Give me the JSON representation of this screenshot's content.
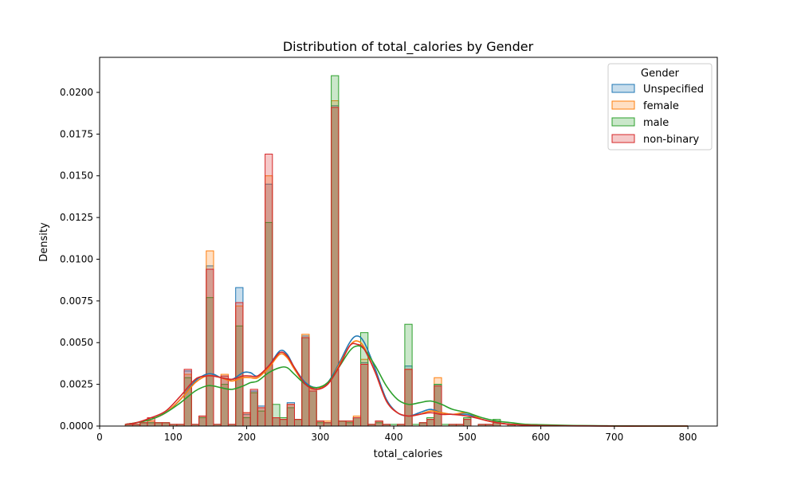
{
  "chart_data": {
    "type": "histogram",
    "title": "Distribution of total_calories by Gender",
    "xlabel": "total_calories",
    "ylabel": "Density",
    "xlim": [
      0,
      840
    ],
    "ylim": [
      0,
      0.0221
    ],
    "xticks": [
      0,
      100,
      200,
      300,
      400,
      500,
      600,
      700,
      800
    ],
    "xtick_labels": [
      "0",
      "100",
      "200",
      "300",
      "400",
      "500",
      "600",
      "700",
      "800"
    ],
    "yticks": [
      0,
      0.0025,
      0.005,
      0.0075,
      0.01,
      0.0125,
      0.015,
      0.0175,
      0.02
    ],
    "ytick_labels": [
      "0.0000",
      "0.0025",
      "0.0050",
      "0.0075",
      "0.0100",
      "0.0125",
      "0.0150",
      "0.0175",
      "0.0200"
    ],
    "grid": false,
    "legend": {
      "title": "Gender",
      "placement": "top-right"
    },
    "bin_start": 35,
    "bin_width": 10,
    "series": [
      {
        "name": "Unspecified",
        "color": "#1f77b4",
        "bars": [
          0.0001,
          0.0001,
          0.0002,
          0.0002,
          0.0002,
          0.0002,
          0.0001,
          0.0001,
          0.0033,
          0.0001,
          0.0006,
          0.0096,
          0.0001,
          0.003,
          0.0001,
          0.0083,
          0.0007,
          0.0021,
          0.0012,
          0.0145,
          0.0005,
          0.0004,
          0.0014,
          0.0004,
          0.0054,
          0.0023,
          0.0003,
          0.0002,
          0.0192,
          0.0003,
          0.0003,
          0.0005,
          0.0038,
          0.0001,
          0.0003,
          0.0001,
          0.0,
          0.0001,
          0.0036,
          0.0,
          0.0002,
          0.0004,
          0.0025,
          0.0,
          0.0001,
          0.0001,
          0.0004,
          0.0,
          0.0001,
          0.0001,
          0.0003,
          0.0,
          0.0001,
          0.0,
          0.0,
          0.0,
          0.0,
          0.0,
          0.0,
          0.0,
          0.0,
          0.0,
          0.0,
          0.0,
          0.0,
          0.0,
          0.0
        ],
        "kde_x": [
          35,
          50,
          70,
          90,
          110,
          130,
          145,
          155,
          165,
          180,
          195,
          205,
          215,
          230,
          245,
          255,
          265,
          280,
          295,
          310,
          325,
          340,
          350,
          360,
          375,
          390,
          405,
          420,
          435,
          450,
          465,
          480,
          500,
          520,
          540,
          560,
          580,
          600,
          650,
          700,
          750,
          800
        ],
        "kde_y": [
          0.0001,
          0.0002,
          0.0004,
          0.0008,
          0.0016,
          0.0027,
          0.0031,
          0.0031,
          0.0029,
          0.0028,
          0.0032,
          0.0032,
          0.003,
          0.0036,
          0.0045,
          0.0043,
          0.0035,
          0.0026,
          0.0023,
          0.0026,
          0.0037,
          0.005,
          0.0054,
          0.005,
          0.0034,
          0.0016,
          0.0008,
          0.0006,
          0.0008,
          0.001,
          0.0008,
          0.0007,
          0.0007,
          0.0004,
          0.0002,
          0.0001,
          0.0001,
          5e-05,
          2e-05,
          0.0,
          0.0,
          0.0
        ]
      },
      {
        "name": "female",
        "color": "#ff7f0e",
        "bars": [
          0.0001,
          0.0001,
          0.0002,
          0.0003,
          0.0002,
          0.0002,
          0.0001,
          0.0001,
          0.0031,
          0.0001,
          0.0006,
          0.0105,
          0.0001,
          0.0031,
          0.0001,
          0.0072,
          0.0008,
          0.002,
          0.0011,
          0.015,
          0.0005,
          0.0004,
          0.0013,
          0.0004,
          0.0055,
          0.0022,
          0.0003,
          0.0003,
          0.0195,
          0.0003,
          0.0003,
          0.0006,
          0.004,
          0.0001,
          0.0003,
          0.0001,
          0.0,
          0.0001,
          0.0034,
          0.0,
          0.0002,
          0.0004,
          0.0029,
          0.0,
          0.0001,
          0.0001,
          0.0005,
          0.0,
          0.0001,
          0.0001,
          0.0002,
          0.0,
          0.0001,
          0.0,
          0.0,
          0.0,
          0.0,
          0.0,
          0.0,
          0.0,
          0.0,
          0.0,
          0.0,
          0.0,
          0.0,
          0.0,
          0.0
        ],
        "kde_x": [
          35,
          50,
          70,
          90,
          110,
          130,
          145,
          155,
          165,
          180,
          195,
          205,
          215,
          230,
          245,
          255,
          265,
          280,
          295,
          310,
          325,
          340,
          350,
          360,
          375,
          390,
          405,
          420,
          435,
          450,
          465,
          480,
          500,
          520,
          540,
          560,
          580,
          600,
          650,
          700,
          750,
          800
        ],
        "kde_y": [
          0.0001,
          0.0002,
          0.0004,
          0.0008,
          0.0016,
          0.0026,
          0.003,
          0.003,
          0.0029,
          0.0027,
          0.0029,
          0.0029,
          0.0029,
          0.0035,
          0.0043,
          0.0041,
          0.0034,
          0.0025,
          0.0023,
          0.0025,
          0.0036,
          0.0048,
          0.0051,
          0.0047,
          0.0032,
          0.0015,
          0.0008,
          0.0006,
          0.0007,
          0.0009,
          0.0008,
          0.0007,
          0.0008,
          0.0004,
          0.0002,
          0.0001,
          0.0001,
          5e-05,
          2e-05,
          0.0,
          0.0,
          0.0
        ]
      },
      {
        "name": "male",
        "color": "#2ca02c",
        "bars": [
          0.0001,
          0.0001,
          0.0002,
          0.0002,
          0.0002,
          0.0002,
          0.0001,
          0.0001,
          0.0029,
          0.0001,
          0.0005,
          0.0077,
          0.0001,
          0.0025,
          0.0001,
          0.006,
          0.0005,
          0.002,
          0.0009,
          0.0122,
          0.0013,
          0.0005,
          0.0011,
          0.0004,
          0.0053,
          0.0021,
          0.0002,
          0.0002,
          0.021,
          0.0003,
          0.0002,
          0.0005,
          0.0056,
          0.0001,
          0.0002,
          0.0001,
          0.0001,
          0.0001,
          0.0061,
          0.0001,
          0.0002,
          0.0005,
          0.0025,
          0.0001,
          0.0001,
          0.0001,
          0.0005,
          0.0,
          0.0001,
          0.0001,
          0.0004,
          0.0,
          0.0001,
          0.0,
          0.0,
          0.0001,
          0.0,
          0.0,
          0.0,
          0.0,
          0.0,
          0.0,
          0.0,
          0.0,
          0.0,
          0.0,
          0.0
        ],
        "kde_x": [
          35,
          50,
          70,
          90,
          110,
          130,
          145,
          155,
          165,
          180,
          195,
          205,
          215,
          230,
          245,
          255,
          265,
          280,
          295,
          310,
          325,
          340,
          350,
          360,
          375,
          390,
          405,
          420,
          435,
          450,
          465,
          480,
          500,
          520,
          540,
          560,
          580,
          600,
          650,
          700,
          750,
          800
        ],
        "kde_y": [
          0.0001,
          0.0002,
          0.0004,
          0.0008,
          0.0014,
          0.0021,
          0.0024,
          0.0024,
          0.0023,
          0.0022,
          0.0024,
          0.0026,
          0.0027,
          0.0032,
          0.0035,
          0.0035,
          0.0031,
          0.0025,
          0.0023,
          0.0026,
          0.0035,
          0.0045,
          0.0048,
          0.0046,
          0.0036,
          0.0024,
          0.0016,
          0.0013,
          0.0014,
          0.0015,
          0.0013,
          0.001,
          0.0008,
          0.0005,
          0.0003,
          0.0002,
          0.0001,
          8e-05,
          3e-05,
          1e-05,
          0.0,
          0.0
        ]
      },
      {
        "name": "non-binary",
        "color": "#d62728",
        "bars": [
          0.0001,
          0.0001,
          0.0002,
          0.0005,
          0.0002,
          0.0002,
          0.0001,
          0.0001,
          0.0034,
          0.0001,
          0.0006,
          0.0094,
          0.0001,
          0.003,
          0.0001,
          0.0074,
          0.0008,
          0.0022,
          0.0011,
          0.0163,
          0.0005,
          0.0004,
          0.0013,
          0.0004,
          0.0053,
          0.0021,
          0.0003,
          0.0002,
          0.0191,
          0.0003,
          0.0003,
          0.0005,
          0.0037,
          0.0001,
          0.0003,
          0.0001,
          0.0,
          0.0001,
          0.0034,
          0.0,
          0.0002,
          0.0004,
          0.0024,
          0.0,
          0.0001,
          0.0001,
          0.0004,
          0.0,
          0.0001,
          0.0001,
          0.0003,
          0.0,
          0.0001,
          0.0,
          0.0,
          0.0,
          0.0,
          0.0,
          0.0,
          0.0,
          0.0,
          0.0,
          0.0,
          0.0,
          0.0,
          0.0,
          0.0
        ],
        "kde_x": [
          35,
          50,
          70,
          90,
          110,
          130,
          145,
          155,
          165,
          180,
          195,
          205,
          215,
          230,
          245,
          255,
          265,
          280,
          295,
          310,
          325,
          340,
          350,
          360,
          375,
          390,
          405,
          420,
          435,
          450,
          465,
          480,
          500,
          520,
          540,
          560,
          580,
          600,
          650,
          700,
          750,
          800
        ],
        "kde_y": [
          0.0001,
          0.0002,
          0.0005,
          0.0009,
          0.0018,
          0.0028,
          0.003,
          0.003,
          0.0029,
          0.0028,
          0.003,
          0.003,
          0.003,
          0.0036,
          0.0044,
          0.0042,
          0.0035,
          0.0025,
          0.0022,
          0.0025,
          0.0035,
          0.0048,
          0.0049,
          0.0046,
          0.0032,
          0.0015,
          0.0008,
          0.0006,
          0.0007,
          0.0008,
          0.0007,
          0.0007,
          0.0006,
          0.0004,
          0.0002,
          0.0001,
          5e-05,
          3e-05,
          1e-05,
          0.0,
          0.0,
          0.0
        ]
      }
    ]
  }
}
